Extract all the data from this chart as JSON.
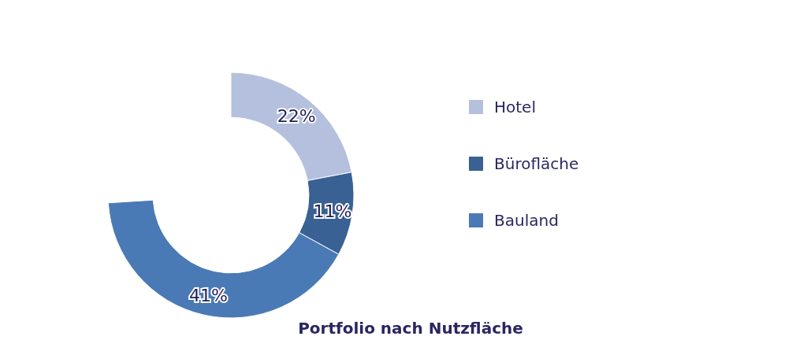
{
  "chart_data": {
    "type": "donut",
    "title": "Portfolio nach Nutzfläche",
    "categories": [
      "Hotel",
      "Bürofläche",
      "Bauland"
    ],
    "values": [
      22,
      11,
      41
    ],
    "colors": [
      "#b4c0de",
      "#3a6193",
      "#4a7ab5"
    ],
    "value_labels": [
      "22%",
      "11%",
      "41%"
    ],
    "legend": "right"
  }
}
